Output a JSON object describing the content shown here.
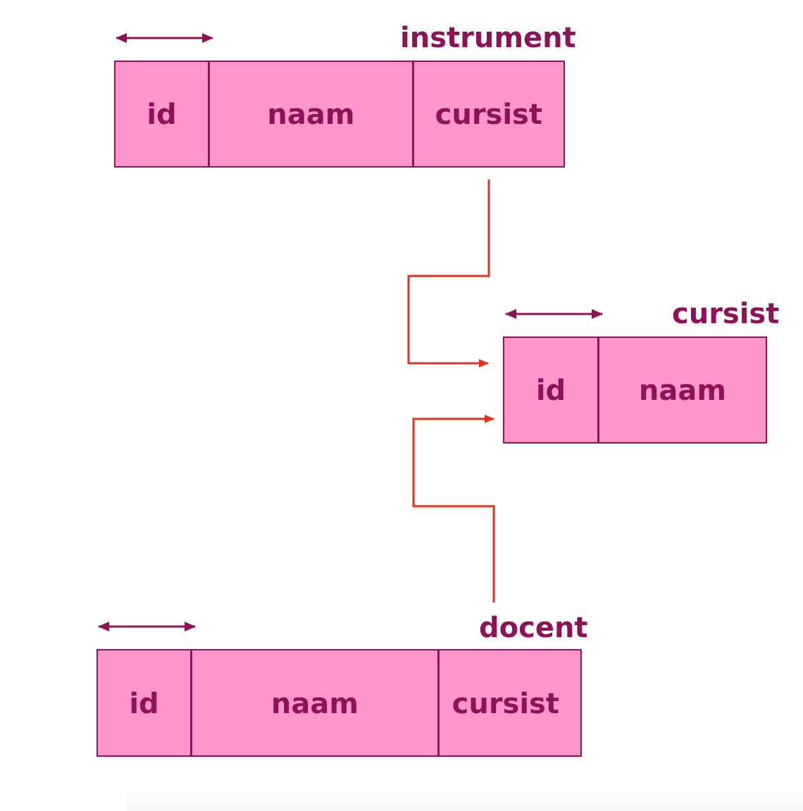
{
  "colors": {
    "table_fill": "#fe96c9",
    "table_border": "#8e1258",
    "label_text": "#8e1258",
    "relation_line": "#e7301f"
  },
  "icons": {
    "key_marker": "double-arrow-icon"
  },
  "tables": {
    "instrument": {
      "title": "instrument",
      "columns": [
        "id",
        "naam",
        "cursist"
      ]
    },
    "cursist": {
      "title": "cursist",
      "columns": [
        "id",
        "naam"
      ]
    },
    "docent": {
      "title": "docent",
      "columns": [
        "id",
        "naam",
        "cursist"
      ]
    }
  },
  "relations": [
    {
      "from": "instrument.cursist",
      "to": "cursist.id"
    },
    {
      "from": "docent.cursist",
      "to": "cursist.id"
    }
  ]
}
